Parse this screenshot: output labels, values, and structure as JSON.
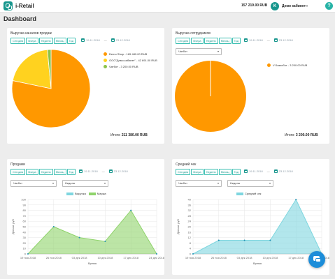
{
  "header": {
    "logo_text": "i-Retail",
    "balance": "157 219.00 RUB",
    "user_initial": "K",
    "user_name": "Демо кабинет",
    "help_label": "?"
  },
  "page_title": "Dashboard",
  "period_buttons": [
    "Сегодня",
    "Вчера",
    "Неделя",
    "Месяц",
    "Год"
  ],
  "cards": {
    "sales_channels": {
      "title": "Выручка каналов продаж",
      "date_from": "19.11.2018",
      "date_to": "23.12.2018",
      "legend": [
        {
          "label": "Demo Shop - 165 489.00 RUB",
          "color": "#ff9800"
        },
        {
          "label": "ООО\"Демо кабинет\" - 42 691.00 RUB",
          "color": "#ffd21f"
        },
        {
          "label": "Чатбот - 3 200.00 RUB",
          "color": "#8bc34a"
        }
      ],
      "total_label": "Итого:",
      "total_value": "211 380.00 RUB"
    },
    "employees": {
      "title": "Выручка сотрудников",
      "date_from": "19.11.2018",
      "date_to": "23.12.2018",
      "select": "Чатбот",
      "legend": [
        {
          "label": "V Баккобот - 3 200.00 RUB",
          "color": "#ff9800"
        }
      ],
      "total_label": "Итого:",
      "total_value": "3 200.00 RUB"
    },
    "sales": {
      "title": "Продажи",
      "date_from": "19.11.2018",
      "date_to": "23.12.2018",
      "select_1": "Чатбот",
      "select_2": "Неделя"
    },
    "avg_check": {
      "title": "Средний чек",
      "date_from": "19.11.2018",
      "date_to": "23.12.2018",
      "select_1": "Чатбот",
      "select_2": "Неделя"
    }
  },
  "chart_data": [
    {
      "type": "pie",
      "categories": [
        "Demo Shop",
        "ООО\"Демо кабинет\"",
        "Чатбот"
      ],
      "values": [
        165489,
        42691,
        3200
      ],
      "colors": [
        "#ff9800",
        "#ffd21f",
        "#8bc34a"
      ]
    },
    {
      "type": "pie",
      "categories": [
        "Баккобот"
      ],
      "values": [
        3200
      ],
      "colors": [
        "#ff9800"
      ]
    },
    {
      "type": "area",
      "categories": [
        "19 ноя 2018",
        "26 ноя 2018",
        "03 дек 2018",
        "10 дек 2018",
        "17 дек 2018",
        "24 дек 2018"
      ],
      "series": [
        {
          "name": "Выручка",
          "values": [
            0,
            0,
            0,
            0,
            0,
            0
          ],
          "color": "#7ed6df"
        },
        {
          "name": "Маржа",
          "values": [
            0,
            50,
            30,
            23,
            80,
            0
          ],
          "color": "#8fd36b"
        }
      ],
      "xlabel": "Время",
      "ylabel": "Деньги, руб",
      "ylim": [
        0,
        100
      ],
      "yticks": [
        0,
        10,
        20,
        30,
        40,
        50,
        60,
        70,
        80,
        90,
        100
      ]
    },
    {
      "type": "area",
      "categories": [
        "19 ноя 2018",
        "26 ноя 2018",
        "03 дек 2018",
        "10 дек 2018",
        "17 дек 2018",
        "24 дек 2018"
      ],
      "series": [
        {
          "name": "Средний чек",
          "values": [
            0,
            10,
            10,
            10,
            40,
            0
          ],
          "color": "#7ed6df"
        }
      ],
      "xlabel": "Время",
      "ylabel": "Деньги, руб",
      "ylim": [
        0,
        40
      ],
      "yticks": [
        0,
        4,
        8,
        12,
        16,
        20,
        24,
        28,
        32,
        36,
        40
      ]
    }
  ]
}
